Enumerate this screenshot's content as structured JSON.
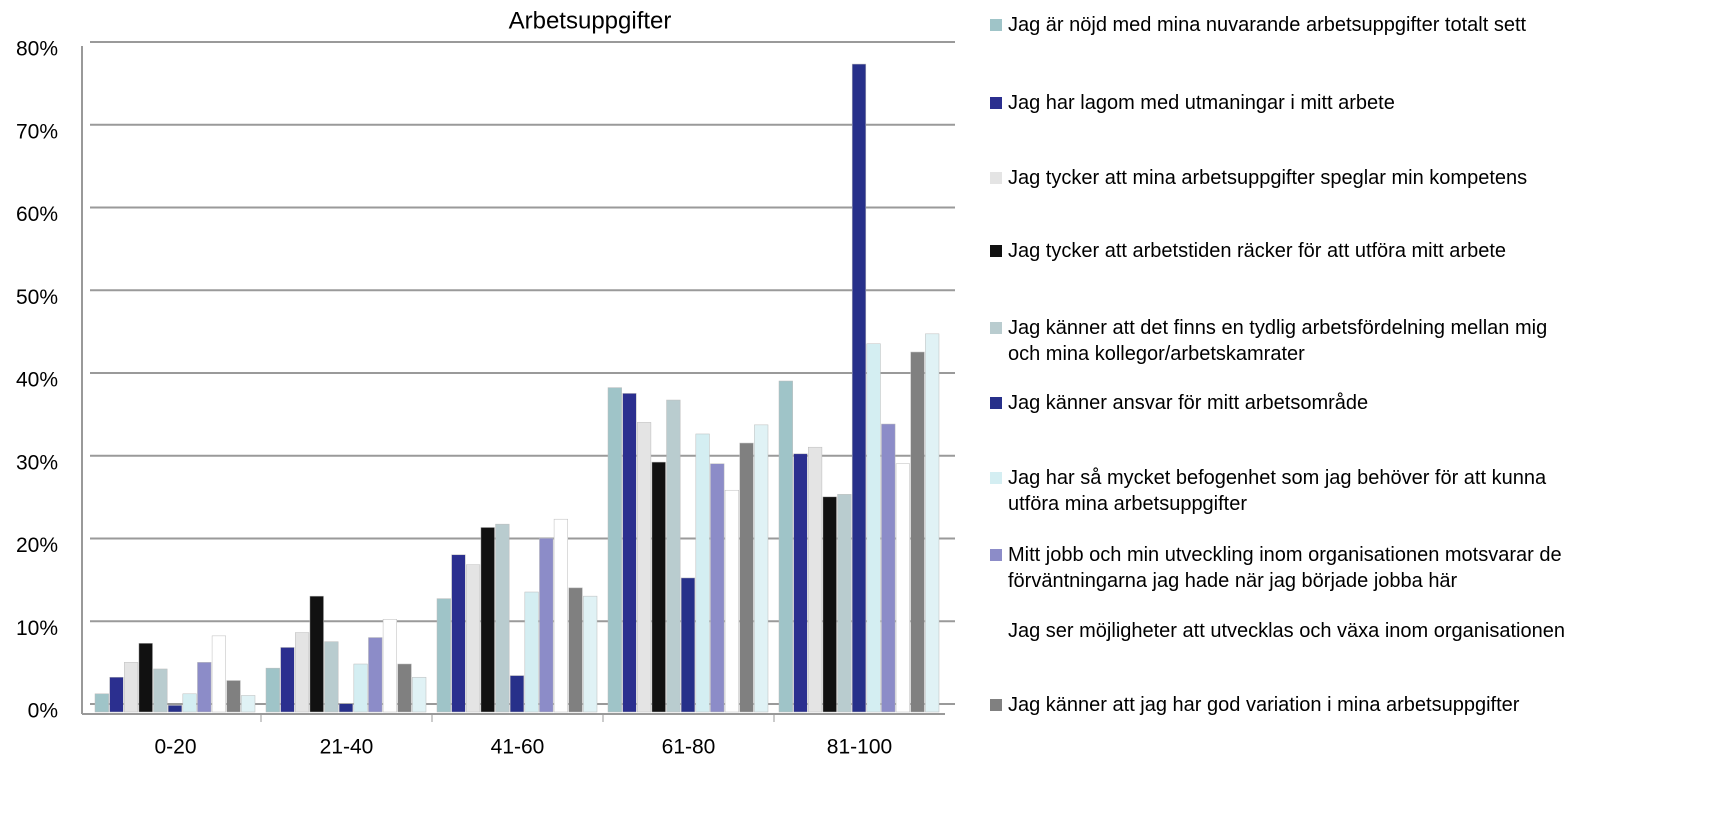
{
  "chart_data": {
    "type": "bar",
    "title": "Arbetsuppgifter",
    "categories": [
      "0-20",
      "21-40",
      "41-60",
      "61-80",
      "81-100"
    ],
    "ylim": [
      0,
      80
    ],
    "yticks": [
      {
        "value": 0,
        "label": "0%"
      },
      {
        "value": 10,
        "label": "10%"
      },
      {
        "value": 20,
        "label": "20%"
      },
      {
        "value": 30,
        "label": "30%"
      },
      {
        "value": 40,
        "label": "40%"
      },
      {
        "value": 50,
        "label": "50%"
      },
      {
        "value": 60,
        "label": "60%"
      },
      {
        "value": 70,
        "label": "70%"
      },
      {
        "value": 80,
        "label": "80%"
      }
    ],
    "grid": true,
    "series": [
      {
        "name": "Jag är nöjd med mina nuvarande arbetsuppgifter totalt sett",
        "color": "#9fc4c8",
        "values": [
          2.2,
          5.3,
          13.7,
          39.2,
          40
        ]
      },
      {
        "name": "Jag har lagom med utmaningar  i mitt arbete",
        "color": "#2b2f8f",
        "values": [
          4.2,
          7.8,
          19,
          38.5,
          31.2
        ]
      },
      {
        "name": "Jag tycker att mina arbetsuppgifter speglar min kompetens",
        "color": "#e4e4e4",
        "values": [
          6,
          9.6,
          17.8,
          35,
          32
        ]
      },
      {
        "name": "Jag tycker att arbetstiden räcker för att utföra mitt arbete",
        "color": "#111111",
        "values": [
          8.3,
          14,
          22.3,
          30.2,
          26
        ]
      },
      {
        "name": "Jag känner att det finns en tydlig arbetsfördelning mellan mig och mina kollegor/arbetskamrater",
        "color": "#b9cccf",
        "values": [
          5.2,
          8.5,
          22.7,
          37.7,
          26.3
        ]
      },
      {
        "name": "Jag känner ansvar för mitt arbetsområde",
        "color": "#27308a",
        "values": [
          0.8,
          1,
          4.4,
          16.2,
          78.3
        ]
      },
      {
        "name": "Jag har så mycket befogenhet som jag behöver för att kunna utföra mina arbetsuppgifter",
        "color": "#d4eef2",
        "values": [
          2.2,
          5.8,
          14.5,
          33.6,
          44.5
        ]
      },
      {
        "name": "Mitt jobb och min utveckling inom organisationen motsvarar de förväntningarna jag hade när jag började jobba här",
        "color": "#8c8cc8",
        "values": [
          6,
          9,
          21,
          30,
          34.8
        ]
      },
      {
        "name": "Jag ser möjligheter att utvecklas och växa inom organisationen",
        "color": "#ffffff",
        "values": [
          9.2,
          11.2,
          23.3,
          26.8,
          30
        ]
      },
      {
        "name": "Jag känner att jag har god variation i mina arbetsuppgifter",
        "color": "#808080",
        "values": [
          3.8,
          5.8,
          15,
          32.5,
          43.5
        ]
      },
      {
        "color": "#e0f2f5",
        "values": [
          2,
          4.2,
          14,
          34.7,
          45.7
        ]
      }
    ]
  }
}
